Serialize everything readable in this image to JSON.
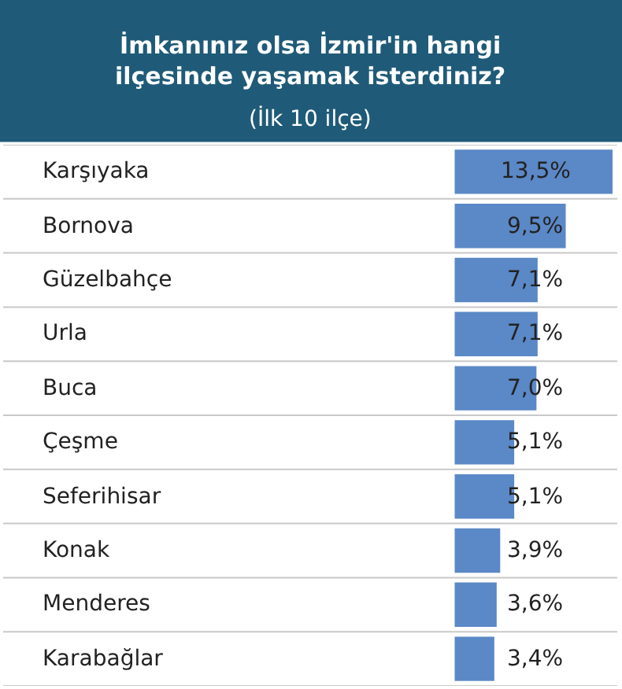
{
  "chart_data": {
    "type": "bar",
    "orientation": "horizontal",
    "title": "İmkanınız olsa İzmir'in hangi\nilçesinde yaşamak isterdiniz?",
    "subtitle": "(İlk 10 ilçe)",
    "categories": [
      "Karşıyaka",
      "Bornova",
      "Güzelbahçe",
      "Urla",
      "Buca",
      "Çeşme",
      "Seferihisar",
      "Konak",
      "Menderes",
      "Karabağlar"
    ],
    "values": [
      13.5,
      9.5,
      7.1,
      7.1,
      7.0,
      5.1,
      5.1,
      3.9,
      3.6,
      3.4
    ],
    "value_labels": [
      "13,5%",
      "9,5%",
      "7,1%",
      "7,1%",
      "7,0%",
      "5,1%",
      "5,1%",
      "3,9%",
      "3,6%",
      "3,4%"
    ],
    "color": "#5b88c6"
  }
}
